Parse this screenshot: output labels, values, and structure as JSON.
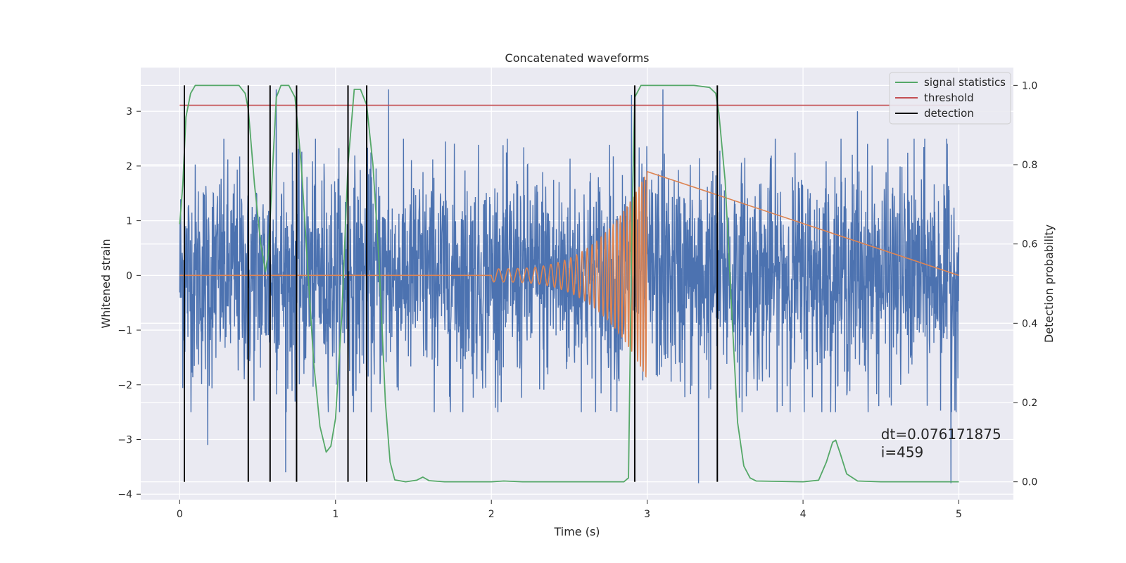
{
  "chart_data": {
    "type": "line",
    "title": "Concatenated waveforms",
    "xlabel": "Time (s)",
    "ylabel": "Whitened strain",
    "y2label": "Detection probability",
    "xlim": [
      -0.25,
      5.35
    ],
    "ylim": [
      -4.1,
      3.8
    ],
    "y2lim": [
      -0.045,
      1.045
    ],
    "x_ticks": [
      0,
      1,
      2,
      3,
      4,
      5
    ],
    "y_ticks": [
      -4,
      -3,
      -2,
      -1,
      0,
      1,
      2,
      3
    ],
    "y2_ticks": [
      0.0,
      0.2,
      0.4,
      0.6,
      0.8,
      1.0
    ],
    "x_tick_labels": [
      "0",
      "1",
      "2",
      "3",
      "4",
      "5"
    ],
    "y_tick_labels": [
      "−4",
      "−3",
      "−2",
      "−1",
      "0",
      "1",
      "2",
      "3"
    ],
    "y2_tick_labels": [
      "0.0",
      "0.2",
      "0.4",
      "0.6",
      "0.8",
      "1.0"
    ],
    "grid": true,
    "legend_position": "top-right",
    "colors": {
      "strain": "#4c72b0",
      "injection": "#dd8452",
      "signal": "#55a868",
      "threshold": "#c44e52",
      "detection": "#000000",
      "background": "#eaeaf2",
      "grid": "#ffffff"
    },
    "series": [
      {
        "name": "",
        "role": "whitened_strain",
        "axis": "left",
        "x_range": [
          0,
          5
        ],
        "typical_range": [
          -2.5,
          2.5
        ],
        "peaks": [
          {
            "x": 0.62,
            "y": 3.4
          },
          {
            "x": 0.68,
            "y": -3.6
          },
          {
            "x": 1.34,
            "y": 3.4
          },
          {
            "x": 2.9,
            "y": 3.3
          },
          {
            "x": 3.1,
            "y": 3.4
          },
          {
            "x": 3.33,
            "y": -3.8
          },
          {
            "x": 4.95,
            "y": -3.8
          },
          {
            "x": 0.18,
            "y": -3.1
          },
          {
            "x": 4.35,
            "y": 3.0
          }
        ]
      },
      {
        "name": "",
        "role": "injected_chirp",
        "axis": "left",
        "x_range": [
          2.0,
          3.0
        ],
        "start_amplitude": 0.12,
        "peak_amplitude": 1.9,
        "start_frequency_hz": 16,
        "end_frequency_hz": 60
      },
      {
        "name": "signal statistics",
        "axis": "right",
        "points": [
          [
            0.0,
            0.65
          ],
          [
            0.02,
            0.75
          ],
          [
            0.04,
            0.92
          ],
          [
            0.07,
            0.98
          ],
          [
            0.1,
            1.0
          ],
          [
            0.2,
            1.0
          ],
          [
            0.38,
            1.0
          ],
          [
            0.42,
            0.98
          ],
          [
            0.44,
            0.94
          ],
          [
            0.48,
            0.75
          ],
          [
            0.52,
            0.6
          ],
          [
            0.55,
            0.53
          ],
          [
            0.57,
            0.58
          ],
          [
            0.6,
            0.82
          ],
          [
            0.62,
            0.97
          ],
          [
            0.65,
            1.0
          ],
          [
            0.7,
            1.0
          ],
          [
            0.74,
            0.97
          ],
          [
            0.78,
            0.8
          ],
          [
            0.82,
            0.55
          ],
          [
            0.86,
            0.3
          ],
          [
            0.9,
            0.14
          ],
          [
            0.94,
            0.075
          ],
          [
            0.97,
            0.09
          ],
          [
            1.0,
            0.16
          ],
          [
            1.04,
            0.42
          ],
          [
            1.08,
            0.8
          ],
          [
            1.12,
            0.99
          ],
          [
            1.16,
            0.99
          ],
          [
            1.2,
            0.95
          ],
          [
            1.24,
            0.8
          ],
          [
            1.28,
            0.55
          ],
          [
            1.32,
            0.2
          ],
          [
            1.35,
            0.05
          ],
          [
            1.38,
            0.005
          ],
          [
            1.45,
            0.0
          ],
          [
            1.52,
            0.004
          ],
          [
            1.56,
            0.012
          ],
          [
            1.6,
            0.003
          ],
          [
            1.7,
            0.0
          ],
          [
            2.0,
            0.0
          ],
          [
            2.08,
            0.002
          ],
          [
            2.2,
            0.0
          ],
          [
            2.85,
            0.0
          ],
          [
            2.88,
            0.01
          ],
          [
            2.9,
            0.6
          ],
          [
            2.92,
            0.97
          ],
          [
            2.96,
            1.0
          ],
          [
            3.3,
            1.0
          ],
          [
            3.4,
            0.995
          ],
          [
            3.44,
            0.98
          ],
          [
            3.46,
            0.93
          ],
          [
            3.5,
            0.76
          ],
          [
            3.54,
            0.45
          ],
          [
            3.58,
            0.15
          ],
          [
            3.62,
            0.04
          ],
          [
            3.66,
            0.01
          ],
          [
            3.7,
            0.002
          ],
          [
            4.0,
            0.0
          ],
          [
            4.1,
            0.004
          ],
          [
            4.15,
            0.05
          ],
          [
            4.19,
            0.1
          ],
          [
            4.21,
            0.105
          ],
          [
            4.24,
            0.07
          ],
          [
            4.28,
            0.02
          ],
          [
            4.35,
            0.002
          ],
          [
            4.5,
            0.0
          ],
          [
            5.0,
            0.0
          ]
        ]
      },
      {
        "name": "threshold",
        "axis": "right",
        "value": 0.95,
        "x_range": [
          0,
          5
        ]
      },
      {
        "name": "detection",
        "axis": "right",
        "x": [
          0.03,
          0.44,
          0.58,
          0.75,
          1.08,
          1.2,
          2.92,
          3.45
        ],
        "y_range": [
          0,
          1
        ]
      }
    ],
    "annotations": [
      {
        "text": "dt=0.076171875",
        "x": 4.5,
        "y2": 0.108
      },
      {
        "text": " i=459",
        "x": 4.5,
        "y2": 0.062
      }
    ]
  }
}
